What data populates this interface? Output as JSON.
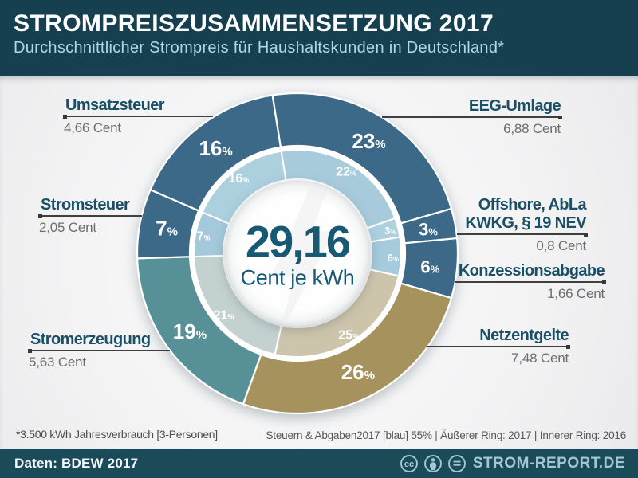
{
  "header": {
    "title": "STROMPREISZUSAMMENSETZUNG 2017",
    "subtitle": "Durchschnittlicher Strompreis für Haushaltskunden in Deutschland*"
  },
  "chart_data": {
    "type": "donut",
    "title": "Strompreiszusammensetzung 2017",
    "center": {
      "value": "29,16",
      "unit": "Cent je kWh"
    },
    "rings": {
      "outer_year": "2017",
      "inner_year": "2016"
    },
    "start_angle_deg": -9,
    "value_unit": "Prozent",
    "segments": [
      {
        "id": "eeg-umlage",
        "label": "EEG-Umlage",
        "cent_label": "6,88 Cent",
        "pct_2017": 23,
        "pct_2016": 22,
        "color_2017": "#3d6988",
        "color_2016": "#a8cbdb"
      },
      {
        "id": "offshore-kwkg",
        "label_lines": [
          "Offshore, AbLa",
          "KWKG, § 19 NEV"
        ],
        "cent_label": "0,8 Cent",
        "pct_2017": 3,
        "pct_2016": 3,
        "color_2017": "#3d6988",
        "color_2016": "#aed1e0"
      },
      {
        "id": "konzessionsabgabe",
        "label": "Konzessionsabgabe",
        "cent_label": "1,66 Cent",
        "pct_2017": 6,
        "pct_2016": 6,
        "color_2017": "#3d6988",
        "color_2016": "#a5cbdc"
      },
      {
        "id": "netzentgelte",
        "label": "Netzentgelte",
        "cent_label": "7,48 Cent",
        "pct_2017": 26,
        "pct_2016": 25,
        "color_2017": "#a6925c",
        "color_2016": "#cdc4ac"
      },
      {
        "id": "stromerzeugung",
        "label": "Stromerzeugung",
        "cent_label": "5,63 Cent",
        "pct_2017": 19,
        "pct_2016": 21,
        "color_2017": "#589098",
        "color_2016": "#c3d2d0"
      },
      {
        "id": "stromsteuer",
        "label": "Stromsteuer",
        "cent_label": "2,05 Cent",
        "pct_2017": 7,
        "pct_2016": 7,
        "color_2017": "#3d6988",
        "color_2016": "#a3c9da"
      },
      {
        "id": "umsatzsteuer",
        "label": "Umsatzsteuer",
        "cent_label": "4,66 Cent",
        "pct_2017": 16,
        "pct_2016": 16,
        "color_2017": "#3d6988",
        "color_2016": "#add0de"
      }
    ]
  },
  "notes": {
    "footnote": "*3.500 kWh Jahresverbrauch [3-Personen]",
    "legend": "Steuern & Abgaben2017 [blau] 55%  |  Äußerer Ring: 2017  |  Innerer Ring: 2016"
  },
  "footer": {
    "source": "Daten: BDEW 2017",
    "brand": "STROM-REPORT.DE",
    "cc_glyph": "cc"
  }
}
